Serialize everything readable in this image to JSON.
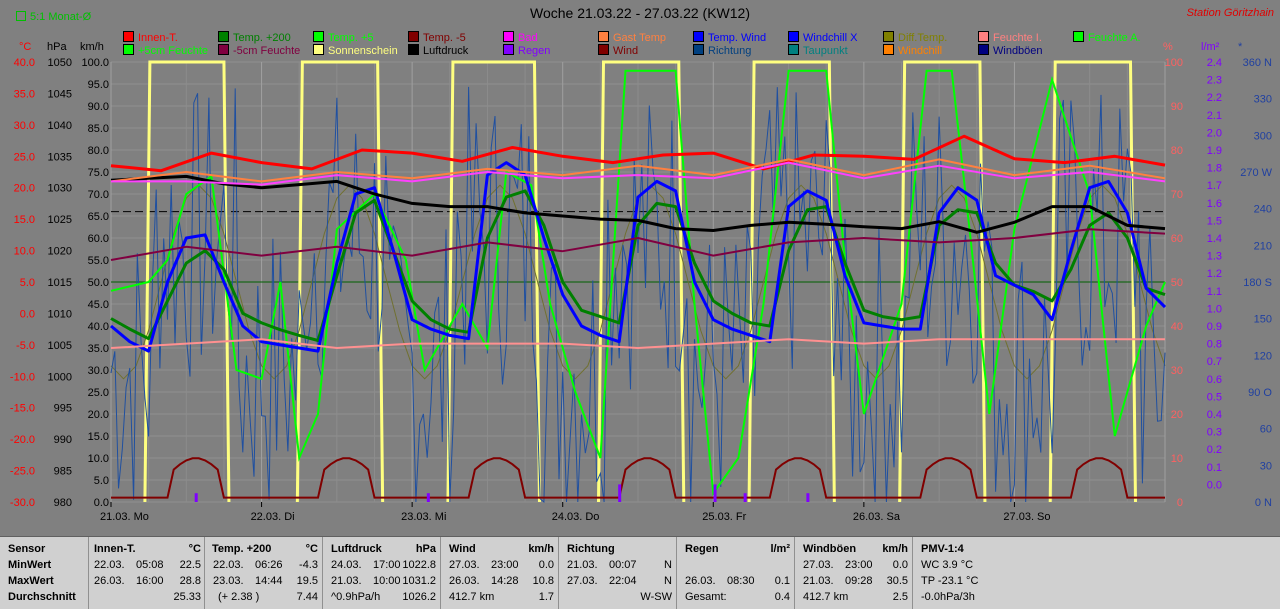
{
  "header": {
    "title": "Woche 21.03.22 - 27.03.22 (KW12)",
    "station": "Station Göritzhain",
    "mode": "5:1 Monat-Ø"
  },
  "legend": [
    {
      "label": "Innen-T.",
      "color": "#ff0000"
    },
    {
      "label": "Temp. +200",
      "color": "#008000"
    },
    {
      "label": "Temp. +5",
      "color": "#00ff00"
    },
    {
      "label": "Temp. -5",
      "color": "#800000"
    },
    {
      "label": "Bad",
      "color": "#ff00ff"
    },
    {
      "label": "Gast Temp",
      "color": "#ff8040"
    },
    {
      "label": "Temp. Wind",
      "color": "#0000ff"
    },
    {
      "label": "Windchill X",
      "color": "#0000ff"
    },
    {
      "label": "Diff.Temp.",
      "color": "#808000"
    },
    {
      "label": "Feuchte I.",
      "color": "#ff8080"
    },
    {
      "label": "Feuchte A.",
      "color": "#00ff00"
    },
    {
      "label": "+5cm Feuchte",
      "color": "#00ff00"
    },
    {
      "label": "-5cm Feuchte",
      "color": "#800040"
    },
    {
      "label": "Sonnenschein",
      "color": "#ffff80"
    },
    {
      "label": "Luftdruck",
      "color": "#000000"
    },
    {
      "label": "Regen",
      "color": "#8000ff"
    },
    {
      "label": "Wind",
      "color": "#800000"
    },
    {
      "label": "Richtung",
      "color": "#004080"
    },
    {
      "label": "Taupunkt",
      "color": "#008080"
    },
    {
      "label": "Windchill",
      "color": "#ff8000"
    },
    {
      "label": "Windböen",
      "color": "#000080"
    }
  ],
  "units": {
    "temp": "°C",
    "pressure": "hPa",
    "speed": "km/h",
    "humidity": "%",
    "rain": "l/m²",
    "star": "*"
  },
  "axes": {
    "temp": [
      "40.0",
      "35.0",
      "30.0",
      "25.0",
      "20.0",
      "15.0",
      "10.0",
      "5.0",
      "0.0",
      "-5.0",
      "-10.0",
      "-15.0",
      "-20.0",
      "-25.0",
      "-30.0"
    ],
    "pressure": [
      "1050",
      "1045",
      "1040",
      "1035",
      "1030",
      "1025",
      "1020",
      "1015",
      "1010",
      "1005",
      "1000",
      "995",
      "990",
      "985",
      "980"
    ],
    "speed": [
      "100.0",
      "95.0",
      "90.0",
      "85.0",
      "80.0",
      "75.0",
      "70.0",
      "65.0",
      "60.0",
      "55.0",
      "50.0",
      "45.0",
      "40.0",
      "35.0",
      "30.0",
      "25.0",
      "20.0",
      "15.0",
      "10.0",
      "5.0",
      "0.0"
    ],
    "humidity": [
      "100",
      "90",
      "80",
      "70",
      "60",
      "50",
      "40",
      "30",
      "20",
      "10",
      "0"
    ],
    "rain": [
      "2.4",
      "2.3",
      "2.2",
      "2.1",
      "2.0",
      "1.9",
      "1.8",
      "1.7",
      "1.6",
      "1.5",
      "1.4",
      "1.3",
      "1.2",
      "1.1",
      "1.0",
      "0.9",
      "0.8",
      "0.7",
      "0.6",
      "0.5",
      "0.4",
      "0.3",
      "0.2",
      "0.1",
      "0.0"
    ],
    "direction": [
      "360 N",
      "330",
      "300",
      "270 W",
      "240",
      "210",
      "180 S",
      "150",
      "120",
      "90 O",
      "60",
      "30",
      "0 N"
    ]
  },
  "chart_data": {
    "type": "line",
    "title": "Woche 21.03.22 - 27.03.22 (KW12)",
    "x_ticks": [
      "21.03. Mo",
      "22.03. Di",
      "23.03. Mi",
      "24.03. Do",
      "25.03. Fr",
      "26.03. Sa",
      "27.03. So"
    ],
    "x_unit": "hours since 21.03. 00:00",
    "ylim_temp": [
      -30,
      40
    ],
    "ylim_pressure": [
      980,
      1050
    ],
    "ylim_speed": [
      0,
      100
    ],
    "ylim_humidity": [
      0,
      100
    ],
    "ylim_rain": [
      0,
      2.5
    ],
    "ylim_direction": [
      0,
      360
    ],
    "grid": true,
    "series": [
      {
        "name": "Innen-T.",
        "axis": "temp",
        "color": "#ff0000",
        "width": 3,
        "x": [
          0,
          8,
          16,
          24,
          32,
          40,
          48,
          56,
          64,
          72,
          80,
          88,
          96,
          104,
          112,
          120,
          128,
          136,
          144,
          152,
          160,
          168
        ],
        "y": [
          23.5,
          22.7,
          25.5,
          24.0,
          23.0,
          26.0,
          25.5,
          24.2,
          26.4,
          25.0,
          24.0,
          25.2,
          25.5,
          23.0,
          25.2,
          25.0,
          24.5,
          28.2,
          24.6,
          24.0,
          25.0,
          23.6
        ]
      },
      {
        "name": "Temp. +200",
        "axis": "temp",
        "color": "#008000",
        "width": 3,
        "x": [
          0,
          3,
          6,
          9,
          12,
          15,
          18,
          21,
          24,
          27,
          30,
          33,
          36,
          39,
          42,
          45,
          48,
          51,
          54,
          57,
          60,
          63,
          66,
          69,
          72,
          75,
          78,
          81,
          84,
          87,
          90,
          93,
          96,
          99,
          102,
          105,
          108,
          111,
          114,
          117,
          120,
          123,
          126,
          129,
          132,
          135,
          138,
          141,
          144,
          147,
          150,
          153,
          156,
          159,
          162,
          165,
          168
        ],
        "y": [
          -0.8,
          -2.5,
          -4.0,
          2.0,
          8.0,
          10.0,
          7.0,
          0,
          -1.5,
          -2.6,
          -3.5,
          -4.3,
          6.0,
          16.0,
          18.0,
          10.0,
          2.0,
          -1.0,
          -2.5,
          -3.0,
          12.0,
          18.5,
          19.5,
          14.0,
          5.0,
          0.5,
          -0.5,
          -1.5,
          14.0,
          17.5,
          17.0,
          8.0,
          2.0,
          0,
          -1.5,
          -2.0,
          10.0,
          16.5,
          17.0,
          8.0,
          0.5,
          -0.5,
          -1.0,
          -0.5,
          14.0,
          16.5,
          16.0,
          8.0,
          4.5,
          3.5,
          2.0,
          7.0,
          14.0,
          16.0,
          12.0,
          4.0,
          3.0
        ]
      },
      {
        "name": "Temp. Wind",
        "axis": "temp",
        "color": "#0000ff",
        "width": 3,
        "x": [
          0,
          3,
          6,
          9,
          12,
          15,
          18,
          21,
          24,
          27,
          30,
          33,
          36,
          39,
          42,
          45,
          48,
          51,
          54,
          57,
          60,
          63,
          66,
          69,
          72,
          75,
          78,
          81,
          84,
          87,
          90,
          93,
          96,
          99,
          102,
          105,
          108,
          111,
          114,
          117,
          120,
          123,
          126,
          129,
          132,
          135,
          138,
          141,
          144,
          147,
          150,
          153,
          156,
          159,
          162,
          165,
          168
        ],
        "y": [
          -2.0,
          -4.5,
          -6.0,
          5.0,
          12.0,
          12.5,
          5.0,
          -2.0,
          -4.5,
          -5.0,
          -5.5,
          -6.0,
          8.0,
          19.0,
          20.0,
          10.0,
          -1.0,
          -2.5,
          -3.5,
          -4.0,
          22.0,
          24.0,
          22.0,
          12.0,
          3.0,
          -2.0,
          -3.5,
          -4.5,
          18.5,
          21.0,
          19.5,
          5.0,
          -1.0,
          -2.5,
          -3.5,
          -4.5,
          17.0,
          19.5,
          18.0,
          6.0,
          -1.5,
          -2.0,
          -2.5,
          -2.5,
          16.0,
          20.0,
          18.0,
          6.0,
          4.5,
          3.0,
          -1.0,
          10.0,
          20.0,
          21.0,
          16.0,
          4.0,
          1.0
        ]
      },
      {
        "name": "Luftdruck",
        "axis": "pressure",
        "color": "#000000",
        "width": 3,
        "x": [
          0,
          6,
          12,
          18,
          24,
          30,
          36,
          42,
          48,
          54,
          60,
          66,
          72,
          78,
          84,
          90,
          96,
          102,
          108,
          114,
          120,
          126,
          132,
          138,
          144,
          150,
          156,
          162,
          168
        ],
        "y": [
          1031.2,
          1031.5,
          1031.8,
          1030.6,
          1030.0,
          1030.5,
          1031.0,
          1029.0,
          1027.5,
          1027.0,
          1027.0,
          1026.0,
          1025.5,
          1025.0,
          1024.8,
          1023.5,
          1023.2,
          1024.0,
          1024.5,
          1024.2,
          1023.8,
          1023.5,
          1024.6,
          1022.9,
          1024.5,
          1027.0,
          1027.0,
          1024.0,
          1023.5
        ]
      },
      {
        "name": "Feuchte I.",
        "axis": "humidity",
        "color": "#ff9090",
        "width": 2,
        "x": [
          0,
          12,
          24,
          36,
          48,
          60,
          72,
          84,
          96,
          108,
          120,
          132,
          144,
          156,
          168
        ],
        "y": [
          35,
          36,
          37,
          35,
          36,
          36,
          36,
          35,
          36,
          37,
          36,
          37,
          37,
          37,
          37
        ]
      },
      {
        "name": "-5cm Feuchte",
        "axis": "humidity",
        "color": "#800040",
        "width": 2,
        "x": [
          0,
          12,
          24,
          36,
          48,
          60,
          72,
          84,
          96,
          108,
          120,
          132,
          144,
          156,
          168
        ],
        "y": [
          55,
          58,
          56,
          58,
          56,
          59,
          57,
          60,
          56,
          59,
          60,
          59,
          60,
          62,
          61
        ]
      },
      {
        "name": "Gast Temp",
        "axis": "temp",
        "color": "#ff8040",
        "width": 2,
        "x": [
          0,
          12,
          24,
          36,
          48,
          60,
          72,
          84,
          96,
          108,
          120,
          132,
          144,
          156,
          168
        ],
        "y": [
          21.0,
          22.5,
          21.0,
          22.5,
          21.5,
          23.0,
          22.0,
          23.5,
          22.0,
          24.5,
          22.0,
          24.5,
          22.0,
          23.5,
          21.5
        ]
      },
      {
        "name": "Bad",
        "axis": "temp",
        "color": "#ff40ff",
        "width": 2,
        "x": [
          0,
          12,
          24,
          36,
          48,
          60,
          72,
          84,
          96,
          108,
          120,
          132,
          144,
          156,
          168
        ],
        "y": [
          21.0,
          21.0,
          20.5,
          22.0,
          21.0,
          22.5,
          21.5,
          22.0,
          21.5,
          24.0,
          21.5,
          23.5,
          21.5,
          22.5,
          21.0
        ]
      }
    ]
  },
  "stats": {
    "col0": {
      "label": "Sensor",
      "r1": "MinWert",
      "r2": "MaxWert",
      "r3": "Durchschnitt"
    },
    "col1": {
      "name": "Innen-T.",
      "unit": "°C",
      "r1a": "22.03.",
      "r1b": "05:08",
      "r1c": "22.5",
      "r2a": "26.03.",
      "r2b": "16:00",
      "r2c": "28.8",
      "r3c": "25.33"
    },
    "col2": {
      "name": "Temp. +200",
      "unit": "°C",
      "r1a": "22.03.",
      "r1b": "06:26",
      "r1c": "-4.3",
      "r2a": "23.03.",
      "r2b": "14:44",
      "r2c": "19.5",
      "r3b": "(+ 2.38 )",
      "r3c": "7.44"
    },
    "col3": {
      "name": "Luftdruck",
      "unit": "hPa",
      "r1a": "24.03.",
      "r1b": "17:00",
      "r1c": "1022.8",
      "r2a": "21.03.",
      "r2b": "10:00",
      "r2c": "1031.2",
      "r3b": "^0.9hPa/h",
      "r3c": "1026.2"
    },
    "col4": {
      "name": "Wind",
      "unit": "km/h",
      "r1a": "27.03.",
      "r1b": "23:00",
      "r1c": "0.0",
      "r2a": "26.03.",
      "r2b": "14:28",
      "r2c": "10.8",
      "r3b": "412.7 km",
      "r3c": "1.7"
    },
    "col5": {
      "name": "Richtung",
      "r1a": "21.03.",
      "r1b": "00:07",
      "r1c": "N",
      "r2a": "27.03.",
      "r2b": "22:04",
      "r2c": "N",
      "r3c": "W-SW"
    },
    "col6": {
      "name": "Regen",
      "unit": "l/m²",
      "r2a": "26.03.",
      "r2b": "08:30",
      "r2c": "0.1",
      "r3b": "Gesamt:",
      "r3c": "0.4"
    },
    "col7": {
      "name": "Windböen",
      "unit": "km/h",
      "r1a": "27.03.",
      "r1b": "23:00",
      "r1c": "0.0",
      "r2a": "21.03.",
      "r2b": "09:28",
      "r2c": "30.5",
      "r3b": "412.7 km",
      "r3c": "2.5"
    },
    "col8": {
      "name": "PMV-1:4",
      "r1": "WC 3.9 °C",
      "r2": "TP -23.1 °C",
      "r3": "-0.0hPa/3h"
    }
  }
}
